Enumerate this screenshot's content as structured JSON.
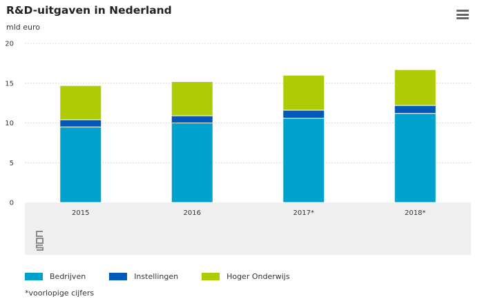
{
  "header": {
    "title": "R&D-uitgaven in Nederland",
    "unit": "mld euro"
  },
  "menu_icon": "hamburger-menu-icon",
  "logo_icon": "cbs-logo-icon",
  "footnote": "*voorlopige cijfers",
  "chart_data": {
    "type": "bar",
    "stacked": true,
    "title": "R&D-uitgaven in Nederland",
    "ylabel": "mld euro",
    "ylim": [
      0,
      20
    ],
    "yticks": [
      "0",
      "5",
      "10",
      "15",
      "20"
    ],
    "categories": [
      "2015",
      "2016",
      "2017*",
      "2018*"
    ],
    "series": [
      {
        "name": "Bedrijven",
        "color": "#00a1cd",
        "values": [
          9.5,
          10.0,
          10.6,
          11.2
        ]
      },
      {
        "name": "Instellingen",
        "color": "#0058b8",
        "values": [
          0.9,
          0.9,
          1.0,
          1.0
        ]
      },
      {
        "name": "Hoger Onderwijs",
        "color": "#afcb05",
        "values": [
          4.3,
          4.3,
          4.4,
          4.5
        ]
      }
    ],
    "legend_position": "bottom-left",
    "grid": true
  }
}
